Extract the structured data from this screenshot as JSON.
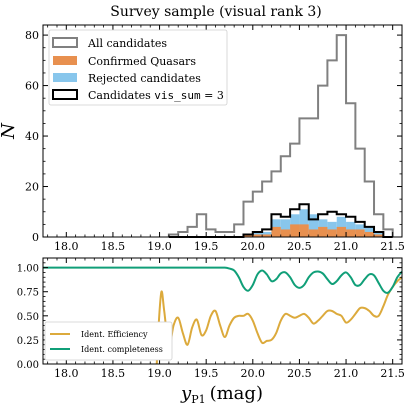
{
  "title": "Survey sample (visual rank 3)",
  "x_axis": {
    "label_main": "y",
    "label_sub": "P1",
    "label_unit": "(mag)",
    "range": [
      17.75,
      21.6
    ],
    "ticks": [
      18.0,
      18.5,
      19.0,
      19.5,
      20.0,
      20.5,
      21.0,
      21.5
    ],
    "tick_labels": [
      "18.0",
      "18.5",
      "19.0",
      "19.5",
      "20.0",
      "20.5",
      "21.0",
      "21.5"
    ]
  },
  "chart_data": [
    {
      "type": "histogram",
      "ylabel": "N",
      "xlim": [
        17.75,
        21.6
      ],
      "ylim": [
        0,
        84
      ],
      "yticks": [
        0,
        20,
        40,
        60,
        80
      ],
      "ytick_labels": [
        "0",
        "20",
        "40",
        "60",
        "80"
      ],
      "bin_edges": [
        19.1,
        19.2,
        19.3,
        19.4,
        19.5,
        19.6,
        19.7,
        19.8,
        19.9,
        20.0,
        20.1,
        20.2,
        20.3,
        20.4,
        20.5,
        20.6,
        20.7,
        20.8,
        20.9,
        21.0,
        21.1,
        21.2,
        21.3,
        21.4,
        21.5
      ],
      "legend_position": "upper-left",
      "series": [
        {
          "name": "All candidates",
          "style": "step",
          "color": "#808080",
          "values": [
            1,
            2,
            4,
            9,
            3,
            2,
            2,
            5,
            14,
            18,
            22,
            26,
            32,
            37,
            47,
            47,
            60,
            70,
            80,
            53,
            35,
            22,
            9,
            3
          ]
        },
        {
          "name": "Rejected candidates",
          "style": "fill",
          "color": "#88c6ec",
          "values": [
            0,
            0,
            0,
            0,
            0,
            0,
            0,
            0,
            1,
            2,
            2,
            7,
            7,
            9,
            11,
            9,
            7,
            6,
            8,
            6,
            5,
            4,
            2,
            0
          ]
        },
        {
          "name": "Confirmed Quasars",
          "style": "fill",
          "color": "#e8904f",
          "values": [
            0,
            0,
            0,
            0,
            0,
            0,
            0,
            0,
            1,
            1,
            1,
            4,
            3,
            5,
            5,
            3,
            4,
            3,
            4,
            3,
            3,
            2,
            1,
            0
          ]
        },
        {
          "name": "Candidates vis_sum = 3",
          "legend_prefix": "Candidates ",
          "legend_code": "vis_sum",
          "legend_suffix": " = 3",
          "style": "step",
          "color": "#000000",
          "values": [
            0,
            0,
            0,
            0,
            0,
            0,
            0,
            0,
            1,
            2,
            3,
            9,
            8,
            11,
            13,
            7,
            9,
            10,
            9,
            8,
            6,
            4,
            2,
            0
          ]
        }
      ],
      "legend_order": [
        "All candidates",
        "Confirmed Quasars",
        "Rejected candidates",
        "Candidates vis_sum = 3"
      ]
    },
    {
      "type": "line",
      "xlim": [
        17.75,
        21.6
      ],
      "ylim": [
        0.0,
        1.1
      ],
      "yticks": [
        0.0,
        0.25,
        0.5,
        0.75,
        1.0
      ],
      "ytick_labels": [
        "0.00",
        "0.25",
        "0.50",
        "0.75",
        "1.00"
      ],
      "legend_position": "lower-left",
      "series": [
        {
          "name": "Ident. Efficiency",
          "color": "#dcaa3c",
          "x": [
            18.97,
            18.99,
            19.02,
            19.05,
            19.1,
            19.15,
            19.2,
            19.25,
            19.3,
            19.35,
            19.4,
            19.45,
            19.5,
            19.55,
            19.6,
            19.65,
            19.7,
            19.75,
            19.8,
            19.85,
            19.9,
            19.95,
            20.0,
            20.05,
            20.1,
            20.15,
            20.2,
            20.25,
            20.3,
            20.35,
            20.4,
            20.45,
            20.5,
            20.55,
            20.6,
            20.65,
            20.7,
            20.75,
            20.8,
            20.85,
            20.9,
            20.95,
            21.0,
            21.05,
            21.1,
            21.15,
            21.2,
            21.25,
            21.3,
            21.35,
            21.4,
            21.45,
            21.5,
            21.55,
            21.6
          ],
          "y": [
            0.0,
            0.4,
            0.75,
            0.55,
            0.18,
            0.4,
            0.48,
            0.32,
            0.2,
            0.38,
            0.46,
            0.3,
            0.35,
            0.5,
            0.55,
            0.4,
            0.28,
            0.4,
            0.48,
            0.5,
            0.5,
            0.52,
            0.45,
            0.32,
            0.22,
            0.24,
            0.25,
            0.32,
            0.45,
            0.52,
            0.5,
            0.48,
            0.5,
            0.52,
            0.48,
            0.42,
            0.45,
            0.5,
            0.55,
            0.55,
            0.52,
            0.5,
            0.43,
            0.46,
            0.52,
            0.58,
            0.58,
            0.55,
            0.5,
            0.5,
            0.6,
            0.72,
            0.8,
            0.86,
            0.9
          ]
        },
        {
          "name": "Ident. completeness",
          "color": "#109f78",
          "x": [
            17.75,
            18.5,
            19.0,
            19.5,
            19.6,
            19.7,
            19.75,
            19.8,
            19.85,
            19.9,
            19.95,
            20.0,
            20.05,
            20.1,
            20.15,
            20.2,
            20.25,
            20.3,
            20.35,
            20.4,
            20.45,
            20.5,
            20.55,
            20.6,
            20.65,
            20.7,
            20.75,
            20.8,
            20.85,
            20.9,
            20.95,
            21.0,
            21.05,
            21.1,
            21.15,
            21.2,
            21.25,
            21.3,
            21.35,
            21.4,
            21.45,
            21.5,
            21.55,
            21.6
          ],
          "y": [
            1.0,
            1.0,
            1.0,
            1.0,
            1.0,
            1.0,
            0.99,
            0.97,
            0.9,
            0.8,
            0.76,
            0.82,
            0.93,
            0.97,
            0.93,
            0.86,
            0.88,
            0.94,
            0.95,
            0.9,
            0.82,
            0.79,
            0.82,
            0.9,
            0.95,
            0.96,
            0.94,
            0.88,
            0.83,
            0.86,
            0.92,
            0.95,
            0.9,
            0.82,
            0.82,
            0.88,
            0.93,
            0.92,
            0.84,
            0.76,
            0.74,
            0.8,
            0.9,
            0.96
          ]
        }
      ]
    }
  ]
}
